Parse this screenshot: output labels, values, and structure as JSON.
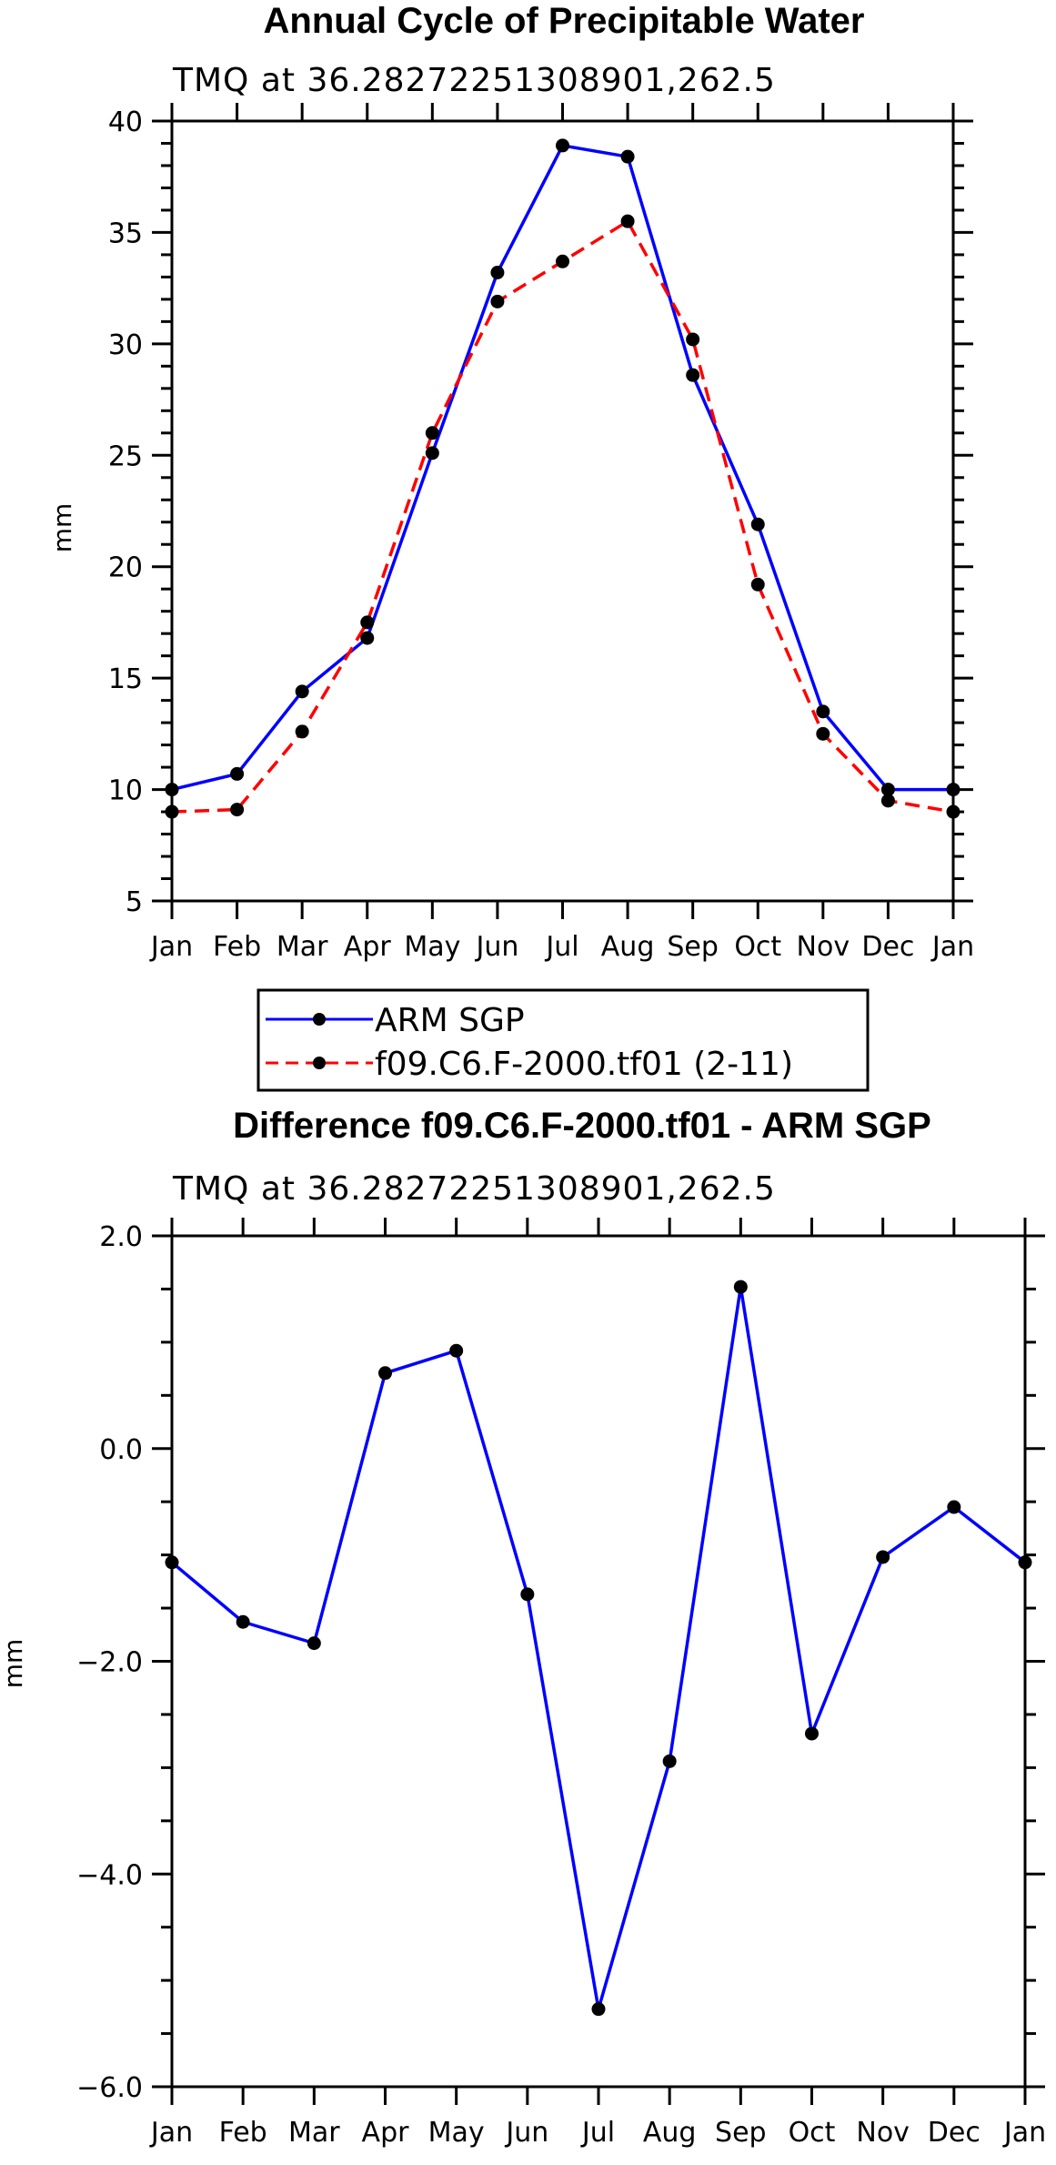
{
  "chart_data": [
    {
      "type": "line",
      "title": "Annual Cycle of Precipitable Water",
      "subtitle": "TMQ at 36.28272251308901,262.5",
      "xlabel": "",
      "ylabel": "mm",
      "categories": [
        "Jan",
        "Feb",
        "Mar",
        "Apr",
        "May",
        "Jun",
        "Jul",
        "Aug",
        "Sep",
        "Oct",
        "Nov",
        "Dec",
        "Jan"
      ],
      "ylim": [
        5,
        40
      ],
      "yticks": [
        "5",
        "10",
        "15",
        "20",
        "25",
        "30",
        "35",
        "40"
      ],
      "series": [
        {
          "name": "ARM SGP",
          "color": "#0000ff",
          "dash": "solid",
          "values": [
            10.0,
            10.7,
            14.4,
            16.8,
            25.1,
            33.2,
            38.9,
            38.4,
            28.6,
            21.9,
            13.5,
            10.0,
            10.0
          ]
        },
        {
          "name": "f09.C6.F-2000.tf01 (2-11)",
          "color": "#ff0000",
          "dash": "dashed",
          "values": [
            9.0,
            9.1,
            12.6,
            17.5,
            26.0,
            31.9,
            33.7,
            35.5,
            30.2,
            19.2,
            12.5,
            9.5,
            9.0
          ]
        }
      ],
      "legend": [
        "ARM SGP",
        "f09.C6.F-2000.tf01 (2-11)"
      ]
    },
    {
      "type": "line",
      "title": "Difference f09.C6.F-2000.tf01 - ARM SGP",
      "subtitle": "TMQ at 36.28272251308901,262.5",
      "xlabel": "",
      "ylabel": "mm",
      "categories": [
        "Jan",
        "Feb",
        "Mar",
        "Apr",
        "May",
        "Jun",
        "Jul",
        "Aug",
        "Sep",
        "Oct",
        "Nov",
        "Dec",
        "Jan"
      ],
      "ylim": [
        -6,
        2
      ],
      "yticks": [
        "−6.0",
        "−4.0",
        "−2.0",
        "0.0",
        "2.0"
      ],
      "series": [
        {
          "name": "Difference",
          "color": "#0000ff",
          "dash": "solid",
          "values": [
            -1.07,
            -1.63,
            -1.83,
            0.71,
            0.92,
            -1.37,
            -5.27,
            -2.94,
            1.52,
            -2.68,
            -1.02,
            -0.55,
            -1.07
          ]
        }
      ]
    }
  ]
}
